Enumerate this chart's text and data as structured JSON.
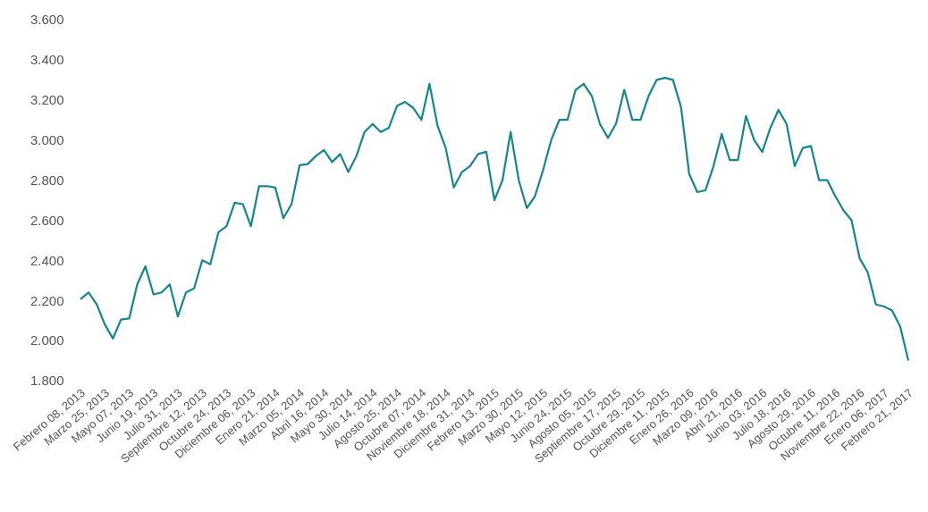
{
  "chart_data": {
    "type": "line",
    "categories": [
      "Febrero 08, 2013",
      null,
      null,
      "Marzo 25, 2013",
      null,
      null,
      "Mayo 07, 2013",
      null,
      null,
      "Junio 19, 2013",
      null,
      null,
      "Julio 31, 2013",
      null,
      null,
      "Septiembre 12, 2013",
      null,
      null,
      "Octubre 24, 2013",
      null,
      null,
      "Diciembre 06, 2013",
      null,
      null,
      "Enero 21, 2014",
      null,
      null,
      "Marzo 05, 2014",
      null,
      null,
      "Abril 16, 2014",
      null,
      null,
      "Mayo 30, 2014",
      null,
      null,
      "Julio 14, 2014",
      null,
      null,
      "Agosto 25, 2014",
      null,
      null,
      "Octubre 07, 2014",
      null,
      null,
      "Noviembre 18, 2014",
      null,
      null,
      "Diciembre 31, 2014",
      null,
      null,
      "Febrero 13, 2015",
      null,
      null,
      "Marzo 30, 2015",
      null,
      null,
      "Mayo 12, 2015",
      null,
      null,
      "Junio 24, 2015",
      null,
      null,
      "Agosto 05, 2015",
      null,
      null,
      "Septiembre 17, 2015",
      null,
      null,
      "Octubre 29, 2015",
      null,
      null,
      "Diciembre 11, 2015",
      null,
      null,
      "Enero 26, 2016",
      null,
      null,
      "Marzo 09, 2016",
      null,
      null,
      "Abril 21, 2016",
      null,
      null,
      "Junio 03, 2016",
      null,
      null,
      "Julio 18, 2016",
      null,
      null,
      "Agosto 29, 2016",
      null,
      null,
      "Octubre 11, 2016",
      null,
      null,
      "Noviembre 22, 2016",
      null,
      null,
      "Enero 06, 2017",
      null,
      null,
      "Febrero 21, 2017"
    ],
    "series": [
      {
        "color": "#13868f",
        "values": [
          2206,
          2240,
          2180,
          2080,
          2010,
          2105,
          2110,
          2280,
          2370,
          2230,
          2240,
          2280,
          2120,
          2240,
          2260,
          2400,
          2380,
          2540,
          2570,
          2687,
          2680,
          2570,
          2770,
          2770,
          2763,
          2610,
          2680,
          2874,
          2880,
          2920,
          2950,
          2890,
          2930,
          2840,
          2920,
          3040,
          3080,
          3040,
          3061,
          3170,
          3190,
          3160,
          3100,
          3280,
          3070,
          2960,
          2763,
          2840,
          2870,
          2930,
          2941,
          2700,
          2800,
          3040,
          2800,
          2660,
          2720,
          2850,
          3000,
          3100,
          3100,
          3250,
          3280,
          3220,
          3080,
          3010,
          3083,
          3250,
          3100,
          3100,
          3220,
          3300,
          3310,
          3300,
          3163,
          2830,
          2740,
          2749,
          2870,
          3030,
          2900,
          2900,
          3120,
          3000,
          2940,
          3060,
          3150,
          3080,
          2870,
          2960,
          2970,
          2800,
          2800,
          2720,
          2650,
          2600,
          2410,
          2340,
          2180,
          2170,
          2150,
          2070,
          1900
        ]
      }
    ],
    "ylim": [
      1800,
      3600
    ],
    "yticks": [
      {
        "value": 1800,
        "label": "1.800"
      },
      {
        "value": 2000,
        "label": "2.000"
      },
      {
        "value": 2200,
        "label": "2.200"
      },
      {
        "value": 2400,
        "label": "2.400"
      },
      {
        "value": 2600,
        "label": "2.600"
      },
      {
        "value": 2800,
        "label": "2.800"
      },
      {
        "value": 3000,
        "label": "3.000"
      },
      {
        "value": 3200,
        "label": "3.200"
      },
      {
        "value": 3400,
        "label": "3.400"
      },
      {
        "value": 3600,
        "label": "3.600"
      }
    ],
    "grid": false,
    "legend": false,
    "marker": "none",
    "line_style": "solid"
  }
}
